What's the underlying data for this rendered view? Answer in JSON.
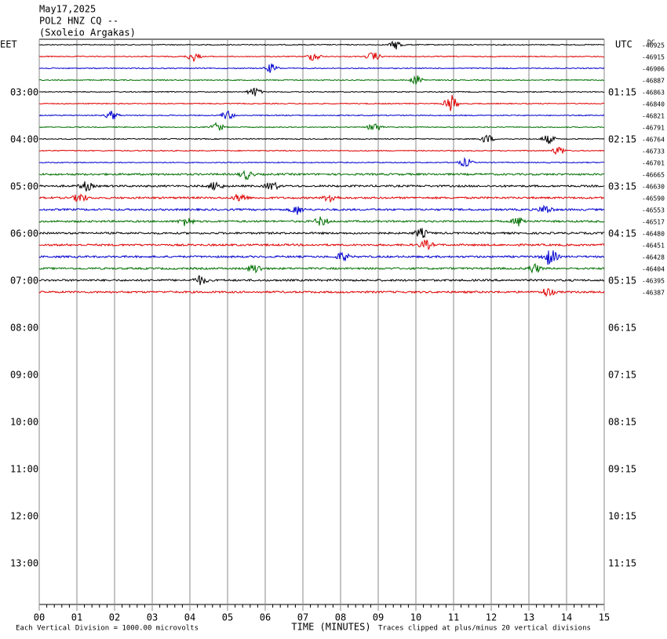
{
  "chart_data": {
    "type": "helicorder",
    "title_lines": [
      "May17,2025",
      "POL2 HNZ CQ --",
      "(Sxoleio Argakas)"
    ],
    "left_axis_label": "EET",
    "right_axis_label": "UTC",
    "offset_label": "DC",
    "xlabel": "TIME (MINUTES)",
    "xlim": [
      0,
      15
    ],
    "xticks": [
      {
        "value": 0,
        "label": "00"
      },
      {
        "value": 1,
        "label": "01"
      },
      {
        "value": 2,
        "label": "02"
      },
      {
        "value": 3,
        "label": "03"
      },
      {
        "value": 4,
        "label": "04"
      },
      {
        "value": 5,
        "label": "05"
      },
      {
        "value": 6,
        "label": "06"
      },
      {
        "value": 7,
        "label": "07"
      },
      {
        "value": 8,
        "label": "08"
      },
      {
        "value": 9,
        "label": "09"
      },
      10,
      11,
      12,
      13,
      14,
      15
    ],
    "eet_labels": [
      "03:00",
      "04:00",
      "05:00",
      "06:00",
      "07:00",
      "08:00",
      "09:00",
      "10:00",
      "11:00",
      "12:00",
      "13:00"
    ],
    "utc_labels": [
      "01:15",
      "02:15",
      "03:15",
      "04:15",
      "05:15",
      "06:15",
      "07:15",
      "08:15",
      "09:15",
      "10:15",
      "11:15"
    ],
    "trace_colors": [
      "#000000",
      "#e00000",
      "#0000d0",
      "#007000"
    ],
    "offsets": [
      -46925,
      -46915,
      -46906,
      -46887,
      -46863,
      -46840,
      -46821,
      -46791,
      -46764,
      -46733,
      -46701,
      -46665,
      -46630,
      -46590,
      -46553,
      -46517,
      -46480,
      -46451,
      -46428,
      -46404,
      -46395,
      -46387
    ],
    "footer_left": "Each Vertical Division = 1000.00 microvolts",
    "footer_right": "Traces clipped at plus/minus 20 vertical divisions"
  }
}
